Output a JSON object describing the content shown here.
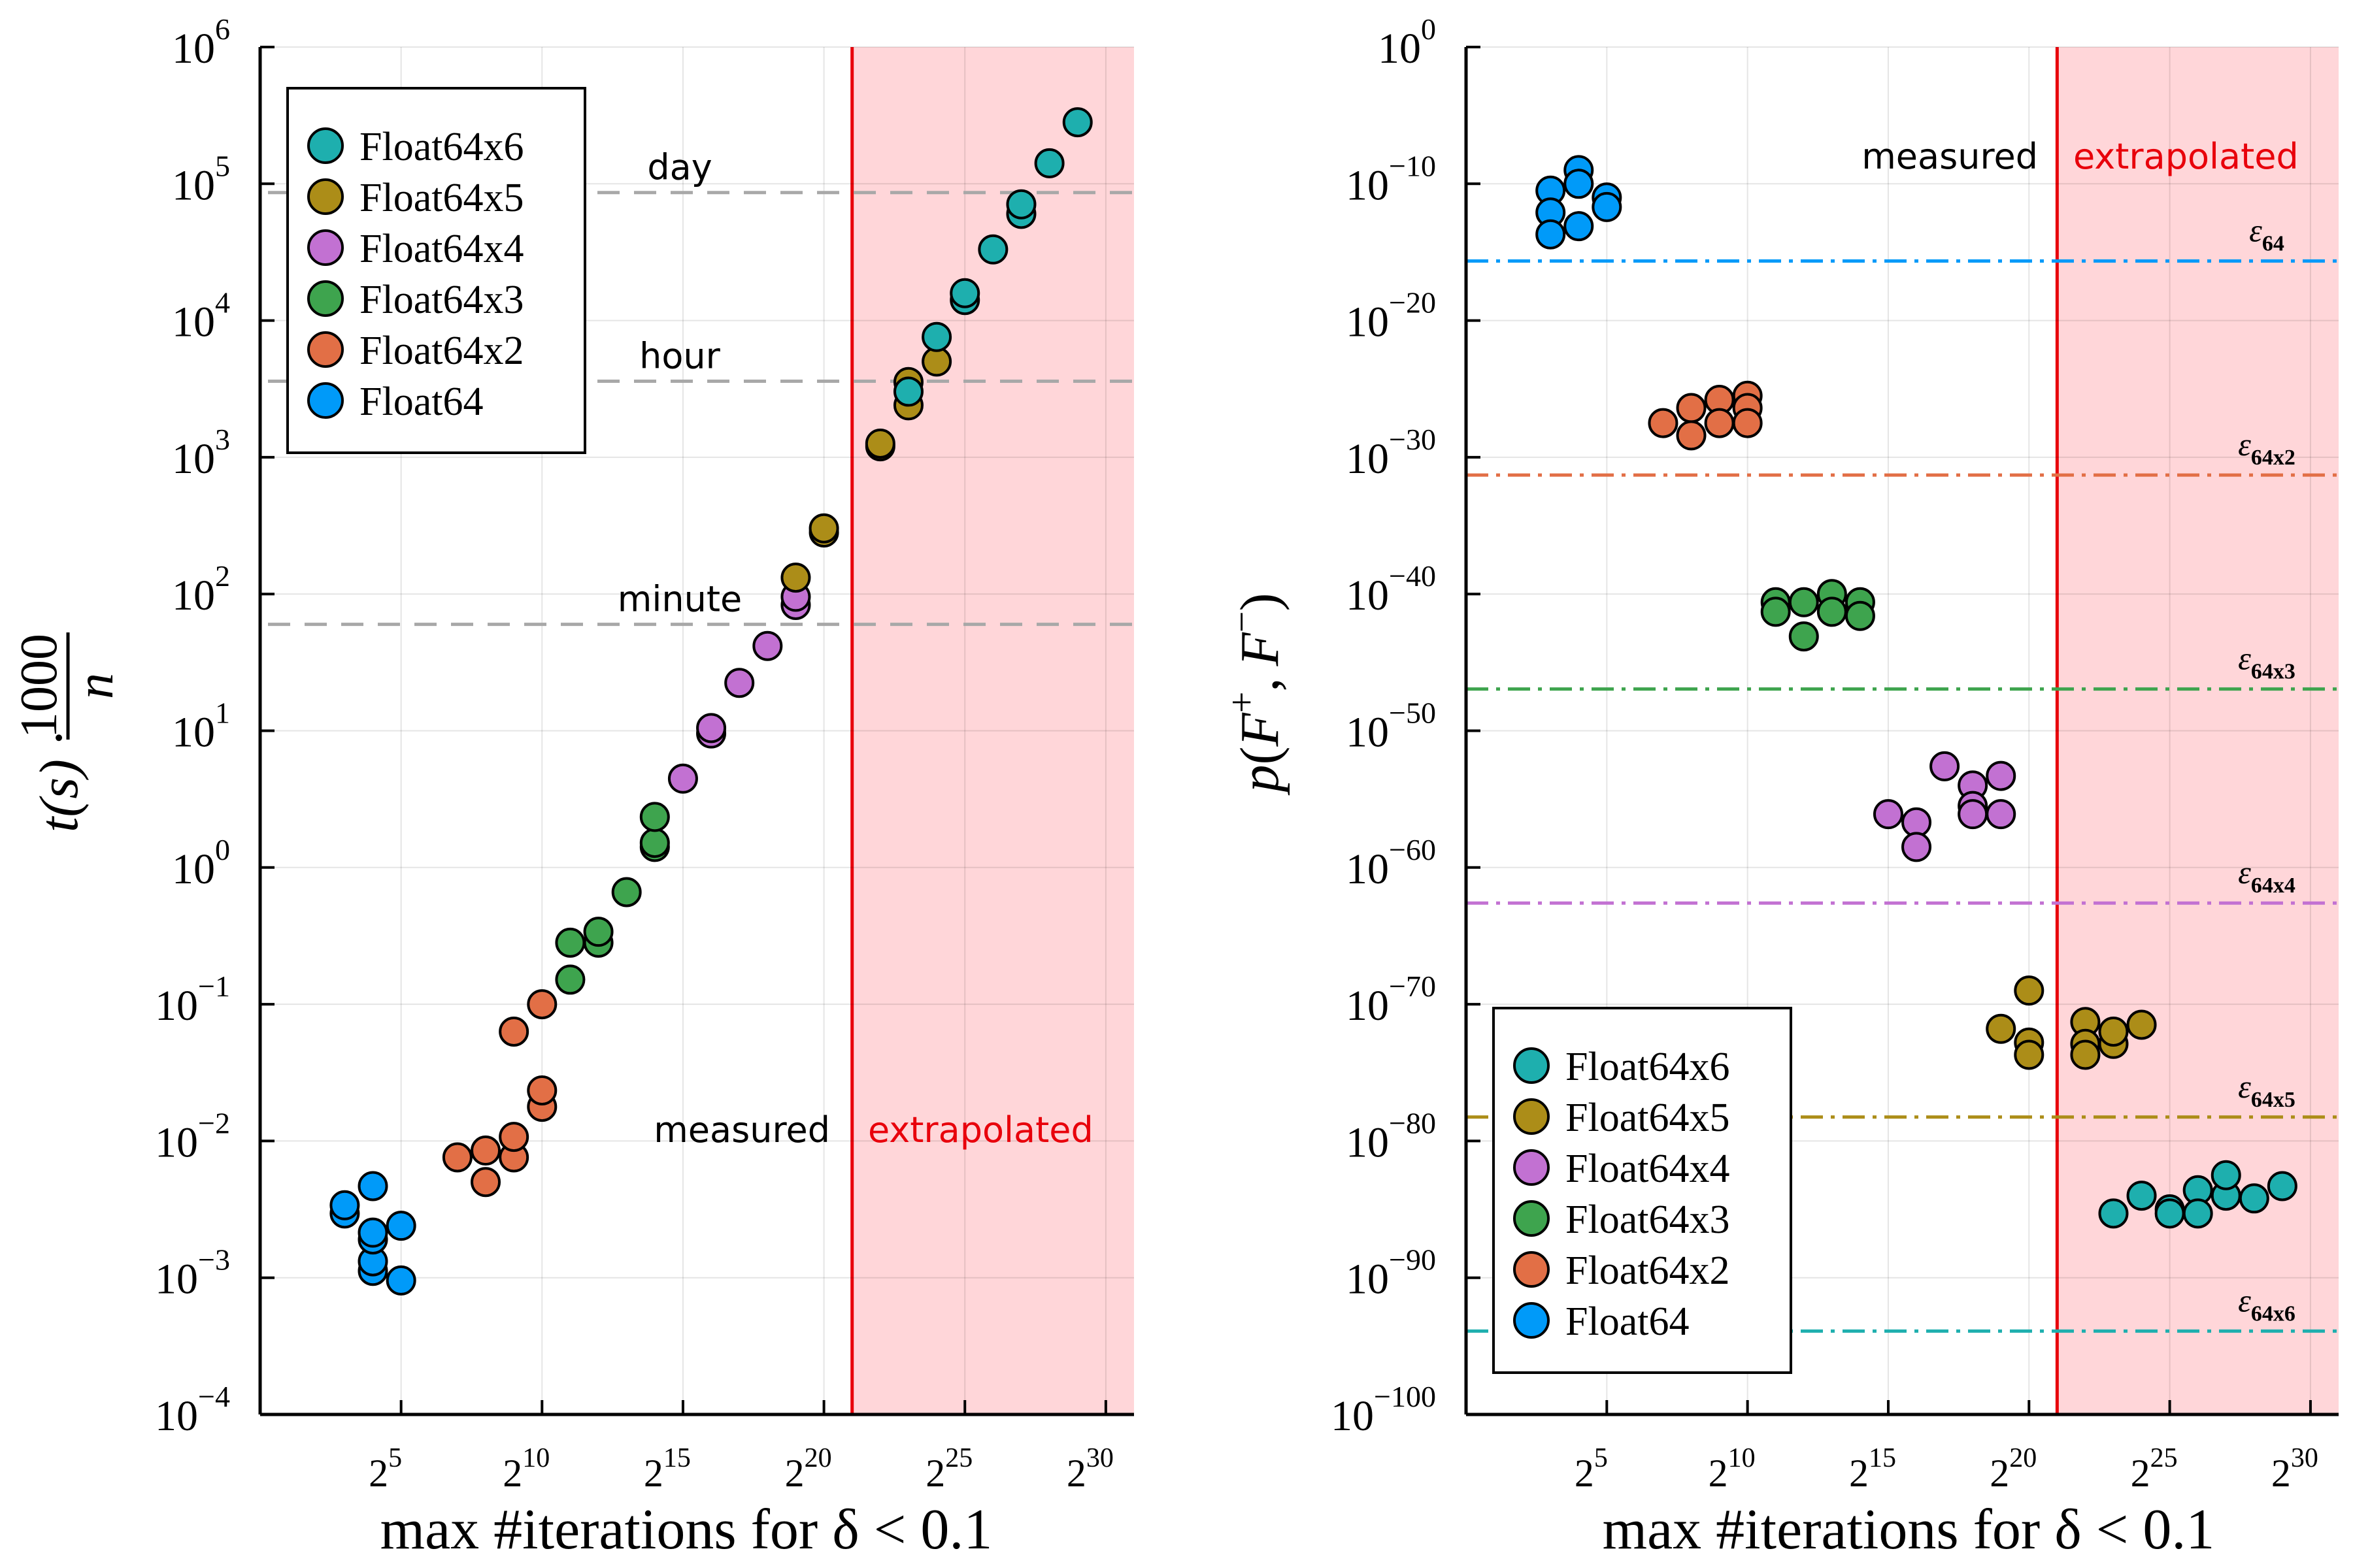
{
  "chart_data": [
    {
      "type": "scatter",
      "xscale": "log2",
      "yscale": "log10",
      "xlim_log2": [
        0,
        31
      ],
      "ylim_log10": [
        -4,
        6
      ],
      "xticks_log2": [
        5,
        10,
        15,
        20,
        25,
        30
      ],
      "yticks_log10": [
        -4,
        -3,
        -2,
        -1,
        0,
        1,
        2,
        3,
        4,
        5,
        6
      ],
      "xlabel": "max #iterations for δ < 0.1",
      "ylabel": "t(s) · 1000/n",
      "ylabel_parts": {
        "lhs": "t(s) ·",
        "num": "1000",
        "den": "n"
      },
      "grid": true,
      "legend_position": "top-left",
      "region_split_log2": 21,
      "region_left_label": "measured",
      "region_right_label": "extrapolated",
      "hlines": [
        {
          "label": "day",
          "value_log10": 4.936
        },
        {
          "label": "hour",
          "value_log10": 3.556
        },
        {
          "label": "minute",
          "value_log10": 1.778
        }
      ],
      "series": [
        {
          "name": "Float64x6",
          "color": "#1eafae",
          "points": [
            [
              23,
              3.48
            ],
            [
              24,
              3.88
            ],
            [
              25,
              4.15
            ],
            [
              25,
              4.2
            ],
            [
              26,
              4.52
            ],
            [
              27,
              4.78
            ],
            [
              27,
              4.85
            ],
            [
              28,
              5.15
            ],
            [
              29,
              5.45
            ]
          ]
        },
        {
          "name": "Float64x5",
          "color": "#ac8d18",
          "points": [
            [
              19,
              2.12
            ],
            [
              20,
              2.45
            ],
            [
              20,
              2.48
            ],
            [
              22,
              3.08
            ],
            [
              22,
              3.1
            ],
            [
              23,
              3.38
            ],
            [
              23,
              3.55
            ],
            [
              24,
              3.7
            ]
          ]
        },
        {
          "name": "Float64x4",
          "color": "#c271d2",
          "points": [
            [
              15,
              0.65
            ],
            [
              16,
              0.98
            ],
            [
              16,
              1.02
            ],
            [
              17,
              1.35
            ],
            [
              18,
              1.62
            ],
            [
              19,
              1.92
            ],
            [
              19,
              1.98
            ]
          ]
        },
        {
          "name": "Float64x3",
          "color": "#3ea44e",
          "points": [
            [
              11,
              -0.82
            ],
            [
              11,
              -0.55
            ],
            [
              12,
              -0.55
            ],
            [
              12,
              -0.47
            ],
            [
              13,
              -0.18
            ],
            [
              14,
              0.15
            ],
            [
              14,
              0.18
            ],
            [
              14,
              0.37
            ]
          ]
        },
        {
          "name": "Float64x2",
          "color": "#e26f46",
          "points": [
            [
              7,
              -2.12
            ],
            [
              8,
              -2.3
            ],
            [
              8,
              -2.07
            ],
            [
              9,
              -2.12
            ],
            [
              9,
              -1.97
            ],
            [
              9,
              -1.2
            ],
            [
              10,
              -1.75
            ],
            [
              10,
              -1.63
            ],
            [
              10,
              -1.0
            ]
          ]
        },
        {
          "name": "Float64",
          "color": "#009af9",
          "points": [
            [
              3,
              -2.53
            ],
            [
              3,
              -2.47
            ],
            [
              4,
              -2.95
            ],
            [
              4,
              -2.88
            ],
            [
              4,
              -2.72
            ],
            [
              4,
              -2.67
            ],
            [
              4,
              -2.33
            ],
            [
              5,
              -3.02
            ],
            [
              5,
              -2.62
            ]
          ]
        }
      ]
    },
    {
      "type": "scatter",
      "xscale": "log2",
      "yscale": "log10",
      "xlim_log2": [
        0,
        31
      ],
      "ylim_log10": [
        -100,
        0
      ],
      "xticks_log2": [
        5,
        10,
        15,
        20,
        25,
        30
      ],
      "yticks_log10": [
        -100,
        -90,
        -80,
        -70,
        -60,
        -50,
        -40,
        -30,
        -20,
        -10,
        0
      ],
      "xlabel": "max #iterations for δ < 0.1",
      "ylabel": "p(F⁺, F⁻)",
      "ylabel_parts": {
        "p": "p",
        "open": "(",
        "f": "F",
        "plus": "+",
        "comma": ",",
        "minus": "−",
        "close": ")"
      },
      "grid": true,
      "legend_position": "bottom-left",
      "region_split_log2": 21,
      "region_left_label": "measured",
      "region_right_label": "extrapolated",
      "hlines": [
        {
          "label_base": "ε",
          "label_sub": "64",
          "value_log10": -15.65,
          "color": "#009af9"
        },
        {
          "label_base": "ε",
          "label_sub": "64x2",
          "value_log10": -31.3,
          "color": "#e26f46"
        },
        {
          "label_base": "ε",
          "label_sub": "64x3",
          "value_log10": -46.95,
          "color": "#3ea44e"
        },
        {
          "label_base": "ε",
          "label_sub": "64x4",
          "value_log10": -62.6,
          "color": "#c271d2"
        },
        {
          "label_base": "ε",
          "label_sub": "64x5",
          "value_log10": -78.25,
          "color": "#ac8d18"
        },
        {
          "label_base": "ε",
          "label_sub": "64x6",
          "value_log10": -93.9,
          "color": "#1eafae"
        }
      ],
      "series": [
        {
          "name": "Float64x6",
          "color": "#1eafae",
          "points": [
            [
              23,
              -85.3
            ],
            [
              24,
              -84.0
            ],
            [
              25,
              -85.0
            ],
            [
              25,
              -85.3
            ],
            [
              26,
              -83.6
            ],
            [
              26,
              -85.3
            ],
            [
              27,
              -84.0
            ],
            [
              27,
              -82.5
            ],
            [
              28,
              -84.2
            ],
            [
              29,
              -83.3
            ]
          ]
        },
        {
          "name": "Float64x5",
          "color": "#ac8d18",
          "points": [
            [
              19,
              -71.8
            ],
            [
              20,
              -69.0
            ],
            [
              20,
              -72.8
            ],
            [
              20,
              -73.7
            ],
            [
              22,
              -71.3
            ],
            [
              22,
              -72.9
            ],
            [
              22,
              -73.7
            ],
            [
              23,
              -72.9
            ],
            [
              23,
              -72.0
            ],
            [
              24,
              -71.5
            ]
          ]
        },
        {
          "name": "Float64x4",
          "color": "#c271d2",
          "points": [
            [
              15,
              -56.1
            ],
            [
              16,
              -56.7
            ],
            [
              16,
              -58.5
            ],
            [
              17,
              -52.6
            ],
            [
              18,
              -54.0
            ],
            [
              18,
              -55.5
            ],
            [
              18,
              -56.1
            ],
            [
              19,
              -53.3
            ],
            [
              19,
              -56.1
            ]
          ]
        },
        {
          "name": "Float64x3",
          "color": "#3ea44e",
          "points": [
            [
              11,
              -40.6
            ],
            [
              11,
              -41.3
            ],
            [
              12,
              -40.6
            ],
            [
              12,
              -43.1
            ],
            [
              13,
              -40.0
            ],
            [
              13,
              -41.3
            ],
            [
              14,
              -40.6
            ],
            [
              14,
              -41.6
            ]
          ]
        },
        {
          "name": "Float64x2",
          "color": "#e26f46",
          "points": [
            [
              7,
              -27.5
            ],
            [
              8,
              -26.4
            ],
            [
              8,
              -28.4
            ],
            [
              9,
              -25.8
            ],
            [
              9,
              -27.5
            ],
            [
              10,
              -25.5
            ],
            [
              10,
              -26.4
            ],
            [
              10,
              -27.5
            ]
          ]
        },
        {
          "name": "Float64",
          "color": "#009af9",
          "points": [
            [
              3,
              -10.5
            ],
            [
              3,
              -12.1
            ],
            [
              3,
              -13.7
            ],
            [
              4,
              -9.0
            ],
            [
              4,
              -10.0
            ],
            [
              4,
              -13.1
            ],
            [
              5,
              -11.0
            ],
            [
              5,
              -11.7
            ]
          ]
        }
      ]
    }
  ]
}
